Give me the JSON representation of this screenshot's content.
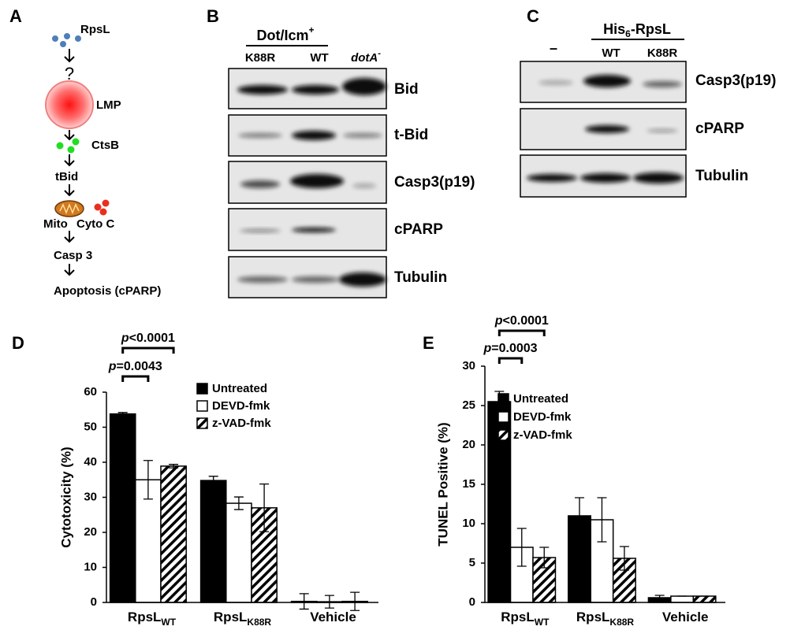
{
  "panel_a": {
    "label": "A",
    "steps": [
      "RpsL",
      "?",
      "LMP",
      "CtsB",
      "tBid",
      "Mito",
      "Cyto C",
      "Casp 3",
      "Apoptosis (cPARP)"
    ]
  },
  "panel_b": {
    "label": "B",
    "header": {
      "text": "Dot/Icm",
      "sup": "+"
    },
    "lanes": [
      {
        "text": "K88R"
      },
      {
        "text": "WT"
      },
      {
        "text": "dotA",
        "sup": "-"
      }
    ],
    "rows": [
      "Bid",
      "t-Bid",
      "Casp3(p19)",
      "cPARP",
      "Tubulin"
    ]
  },
  "panel_c": {
    "label": "C",
    "header": {
      "text": "His",
      "sub": "6",
      "rest": "-RpsL"
    },
    "lanes": [
      "–",
      "WT",
      "K88R"
    ],
    "rows": [
      "Casp3(p19)",
      "cPARP",
      "Tubulin"
    ]
  },
  "chart_data": [
    {
      "type": "bar",
      "panel": "D",
      "ylabel": "Cytotoxicity (%)",
      "categories": [
        {
          "text": "RpsL",
          "sub": "WT"
        },
        {
          "text": "RpsL",
          "sub": "K88R"
        },
        {
          "text": "Vehicle"
        }
      ],
      "series": [
        {
          "name": "Untreated",
          "color": "#000000",
          "fill": "solid",
          "values": [
            53.8,
            34.8,
            0.3
          ],
          "errors": [
            0.4,
            1.2,
            2.2
          ]
        },
        {
          "name": "DEVD-fmk",
          "color": "#000000",
          "fill": "none",
          "values": [
            35,
            28.3,
            0.2
          ],
          "errors": [
            5.5,
            1.8,
            1.8
          ]
        },
        {
          "name": "z-VAD-fmk",
          "color": "#000000",
          "fill": "hatch",
          "values": [
            38.9,
            27,
            0.3
          ],
          "errors": [
            0.5,
            6.8,
            2.6
          ]
        }
      ],
      "annotations": [
        {
          "symbol": "p",
          "text": "<0.0001"
        },
        {
          "symbol": "p",
          "text": "=0.0043"
        }
      ],
      "ylim": [
        0,
        60
      ],
      "yticks": [
        0,
        10,
        20,
        30,
        40,
        50,
        60
      ]
    },
    {
      "type": "bar",
      "panel": "E",
      "ylabel": "TUNEL Positive (%)",
      "categories": [
        {
          "text": "RpsL",
          "sub": "WT"
        },
        {
          "text": "RpsL",
          "sub": "K88R"
        },
        {
          "text": "Vehicle"
        }
      ],
      "series": [
        {
          "name": "Untreated",
          "color": "#000000",
          "fill": "solid",
          "values": [
            25.5,
            11,
            0.6
          ],
          "errors": [
            1.3,
            2.3,
            0.3
          ]
        },
        {
          "name": "DEVD-fmk",
          "color": "#000000",
          "fill": "none",
          "values": [
            7,
            10.5,
            0.8
          ],
          "errors": [
            2.4,
            2.8,
            0
          ]
        },
        {
          "name": "z-VAD-fmk",
          "color": "#000000",
          "fill": "hatch",
          "values": [
            5.7,
            5.6,
            0.8
          ],
          "errors": [
            1.3,
            1.5,
            0
          ]
        }
      ],
      "annotations": [
        {
          "symbol": "p",
          "text": "<0.0001"
        },
        {
          "symbol": "p",
          "text": "=0.0003"
        }
      ],
      "ylim": [
        0,
        30
      ],
      "yticks": [
        0,
        5,
        10,
        15,
        20,
        25,
        30
      ]
    }
  ]
}
